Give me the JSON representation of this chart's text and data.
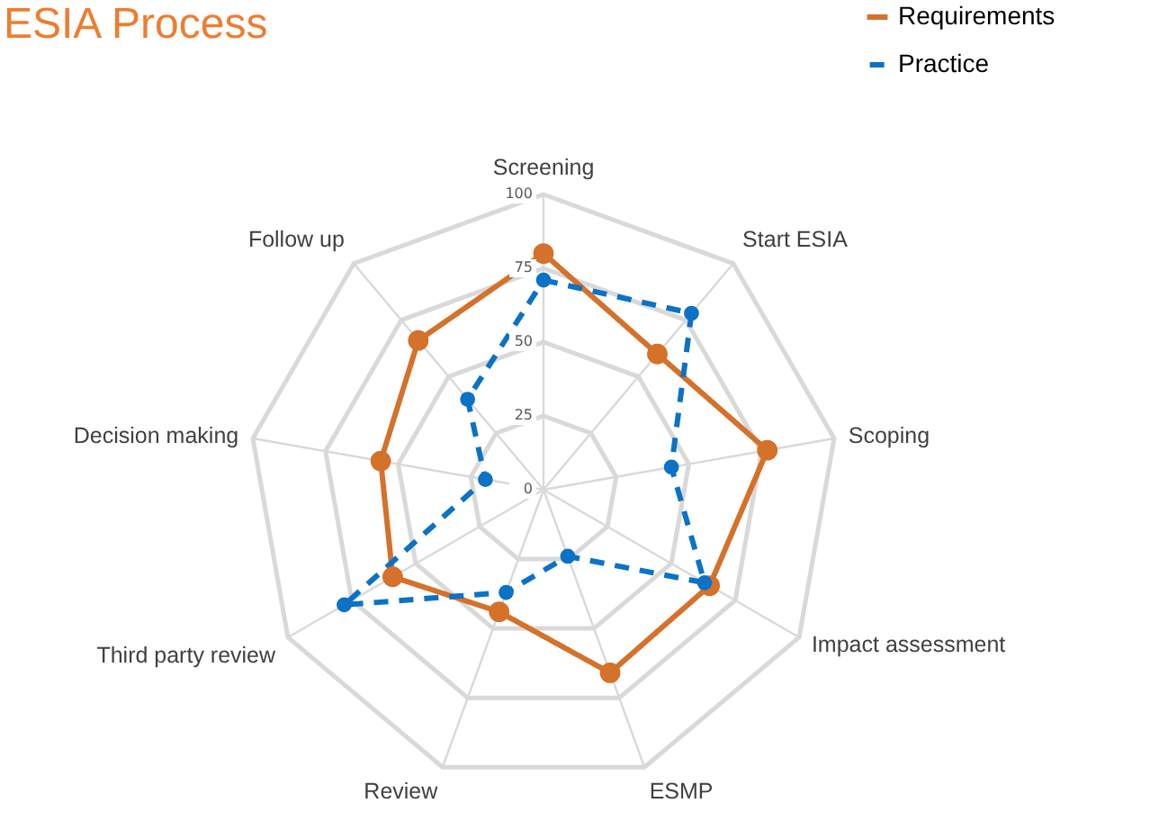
{
  "chart_data": {
    "type": "radar",
    "title": "ESIA Process",
    "categories": [
      "Screening",
      "Start ESIA",
      "Scoping",
      "Impact assessment",
      "ESMP",
      "Review",
      "Third party review",
      "Decision making",
      "Follow up"
    ],
    "series": [
      {
        "name": "Requirements",
        "color": "#d4712a",
        "line_style": "solid",
        "values": [
          80,
          60,
          77,
          65,
          66,
          44,
          59,
          56,
          66
        ]
      },
      {
        "name": "Practice",
        "color": "#0b72c6",
        "line_style": "dashed",
        "values": [
          71,
          78,
          44,
          63,
          24,
          37,
          78,
          20,
          40
        ]
      }
    ],
    "ylim": [
      0,
      100
    ],
    "yticks": [
      0,
      25,
      50,
      75,
      100
    ],
    "grid": true,
    "legend": "top right",
    "marker": "circle"
  }
}
